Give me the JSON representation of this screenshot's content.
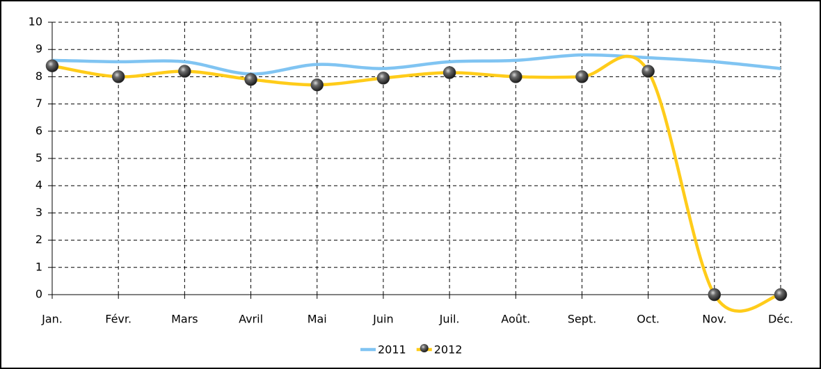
{
  "chart_data": {
    "type": "line",
    "categories": [
      "Jan.",
      "Févr.",
      "Mars",
      "Avril",
      "Mai",
      "Juin",
      "Juil.",
      "Août.",
      "Sept.",
      "Oct.",
      "Nov.",
      "Déc."
    ],
    "series": [
      {
        "name": "2011",
        "color": "#80c4f2",
        "marker": "none",
        "values": [
          8.6,
          8.55,
          8.55,
          8.1,
          8.45,
          8.3,
          8.55,
          8.6,
          8.8,
          8.7,
          8.55,
          8.3
        ]
      },
      {
        "name": "2012",
        "color": "#ffcc1a",
        "marker": "sphere",
        "values": [
          8.4,
          8.0,
          8.2,
          7.9,
          7.7,
          7.95,
          8.15,
          8.0,
          8.0,
          8.2,
          0,
          0
        ]
      }
    ],
    "ylim": [
      0,
      10
    ],
    "yticks": [
      0,
      1,
      2,
      3,
      4,
      5,
      6,
      7,
      8,
      9,
      10
    ],
    "grid": true,
    "smooth": true,
    "legend": "bottom"
  }
}
